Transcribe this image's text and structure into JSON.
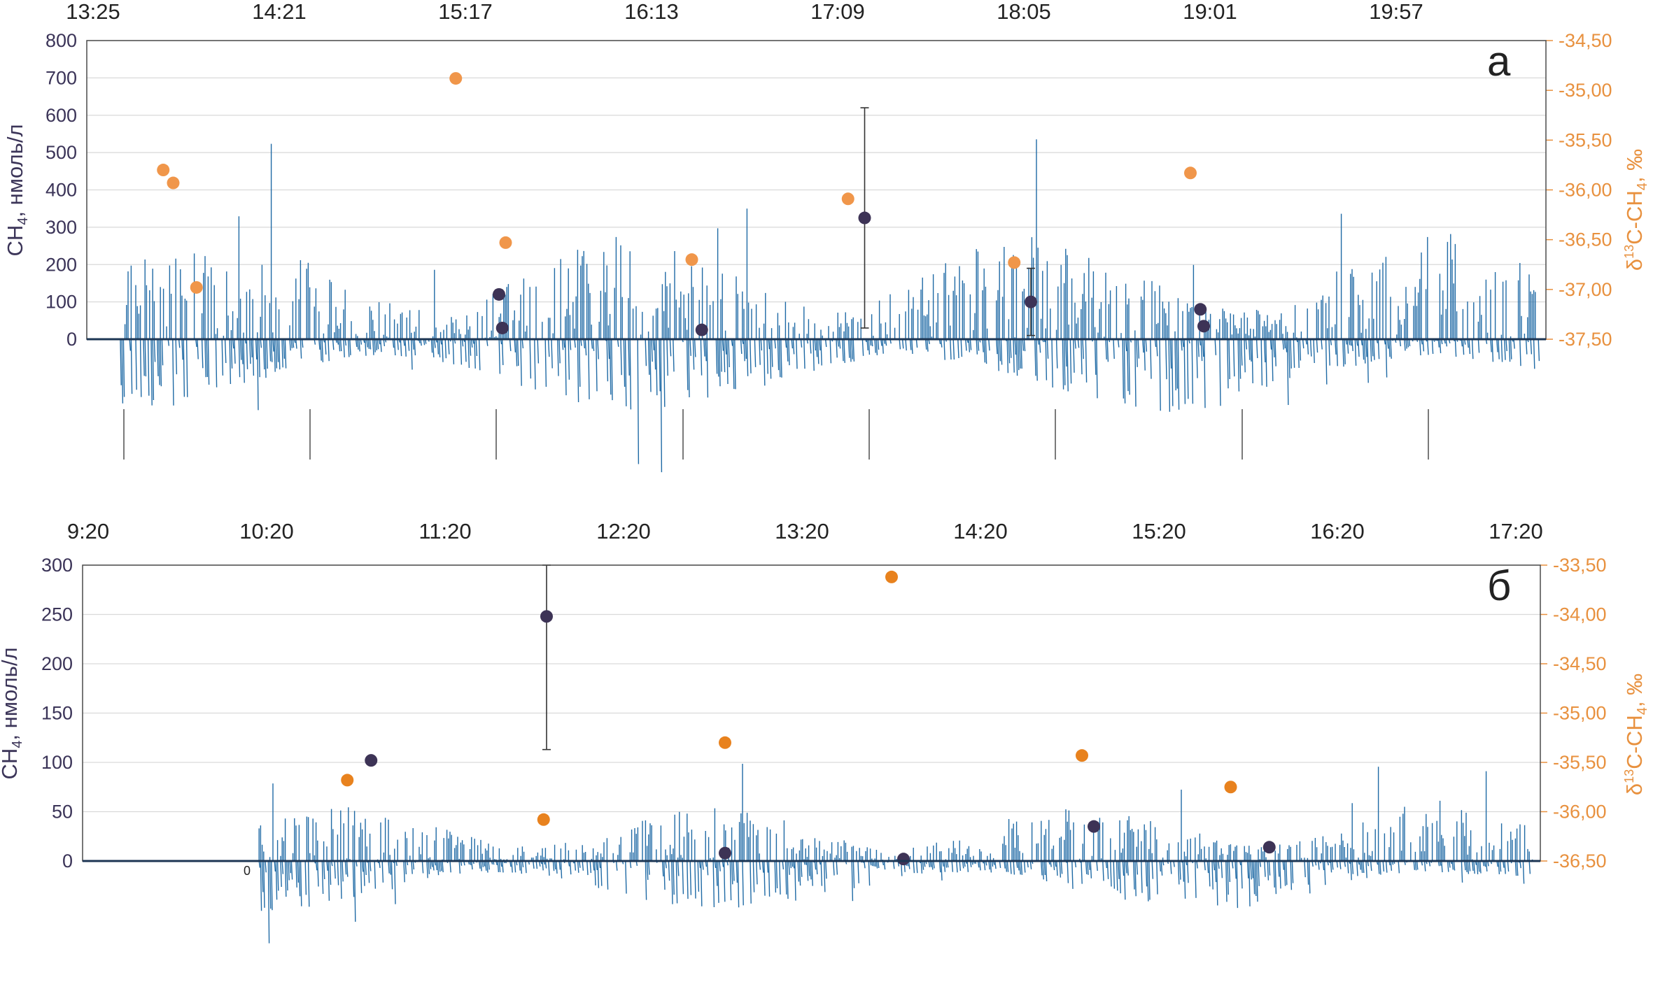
{
  "chart_data": [
    {
      "panel_label": "а",
      "type": "scatter",
      "top_time_axis": [
        "13:25",
        "14:21",
        "15:17",
        "16:13",
        "17:09",
        "18:05",
        "19:01",
        "19:57"
      ],
      "ylabel": "CH4, нмоль/л",
      "ylabel_parts": {
        "main": "CH",
        "sub": "4",
        "rest": ", нмоль/л"
      },
      "ylim": [
        0,
        800
      ],
      "yticks": [
        0,
        100,
        200,
        300,
        400,
        500,
        600,
        700,
        800
      ],
      "y2label_parts": {
        "delta": "δ",
        "sup": "13",
        "main": "C-CH",
        "sub": "4",
        "rest": ", ‰"
      },
      "y2lim": [
        -37.5,
        -34.5
      ],
      "y2ticks": [
        "-37,50",
        "-37,00",
        "-36,50",
        "-36,00",
        "-35,50",
        "-35,00",
        "-34,50"
      ],
      "y2tick_values": [
        -37.5,
        -37.0,
        -36.5,
        -36.0,
        -35.5,
        -35.0,
        -34.5
      ],
      "grid": true,
      "colors": {
        "ch4": "#3d3356",
        "d13c": "#f0964a",
        "signal": "#1f6aa5",
        "grid": "#d9d9d9",
        "axis": "#4a4a4a"
      },
      "series": [
        {
          "name": "CH4",
          "axis": "left",
          "points": [
            {
              "t": "15:23",
              "v": 120,
              "err": 12
            },
            {
              "t": "15:24",
              "v": 30
            },
            {
              "t": "16:24",
              "v": 25,
              "err": 8
            },
            {
              "t": "17:13",
              "v": 325,
              "err": 295
            },
            {
              "t": "18:03",
              "v": 100,
              "err": 90
            },
            {
              "t": "18:54",
              "v": 80
            },
            {
              "t": "18:55",
              "v": 35
            }
          ]
        },
        {
          "name": "δ13C-CH4",
          "axis": "right",
          "points": [
            {
              "t": "13:42",
              "v": -35.8
            },
            {
              "t": "13:45",
              "v": -35.93
            },
            {
              "t": "13:52",
              "v": -36.98
            },
            {
              "t": "15:10",
              "v": -34.88
            },
            {
              "t": "15:25",
              "v": -36.53
            },
            {
              "t": "16:21",
              "v": -36.7
            },
            {
              "t": "17:08",
              "v": -36.09
            },
            {
              "t": "17:58",
              "v": -36.73
            },
            {
              "t": "18:51",
              "v": -35.83
            }
          ]
        }
      ]
    },
    {
      "panel_label": "б",
      "type": "scatter",
      "top_time_axis": [
        "9:20",
        "10:20",
        "11:20",
        "12:20",
        "13:20",
        "14:20",
        "15:20",
        "16:20",
        "17:20"
      ],
      "ylabel_parts": {
        "main": "CH",
        "sub": "4",
        "rest": ", нмоль/л"
      },
      "ylim": [
        0,
        300
      ],
      "yticks": [
        0,
        50,
        100,
        150,
        200,
        250,
        300
      ],
      "y2label_parts": {
        "delta": "δ",
        "sup": "13",
        "main": "C-CH",
        "sub": "4",
        "rest": ", ‰"
      },
      "y2lim": [
        -36.5,
        -33.5
      ],
      "y2ticks": [
        "-36,50",
        "-36,00",
        "-35,50",
        "-35,00",
        "-34,50",
        "-34,00",
        "-33,50"
      ],
      "y2tick_values": [
        -36.5,
        -36.0,
        -35.5,
        -35.0,
        -34.5,
        -34.0,
        -33.5
      ],
      "zero_marker": "0",
      "grid": true,
      "colors": {
        "ch4": "#3d3356",
        "d13c": "#e8821e",
        "signal": "#1f6aa5",
        "grid": "#d9d9d9",
        "axis": "#4a4a4a"
      },
      "series": [
        {
          "name": "CH4",
          "axis": "left",
          "points": [
            {
              "t": "10:57",
              "v": 102
            },
            {
              "t": "11:56",
              "v": 248,
              "err": 135
            },
            {
              "t": "12:56",
              "v": 8
            },
            {
              "t": "13:56",
              "v": 2
            },
            {
              "t": "15:00",
              "v": 35
            },
            {
              "t": "15:59",
              "v": 14
            }
          ]
        },
        {
          "name": "δ13C-CH4",
          "axis": "right",
          "points": [
            {
              "t": "10:49",
              "v": -35.68
            },
            {
              "t": "11:55",
              "v": -36.08
            },
            {
              "t": "12:56",
              "v": -35.3
            },
            {
              "t": "13:52",
              "v": -33.62
            },
            {
              "t": "14:56",
              "v": -35.43
            },
            {
              "t": "15:46",
              "v": -35.75
            }
          ]
        }
      ]
    }
  ]
}
